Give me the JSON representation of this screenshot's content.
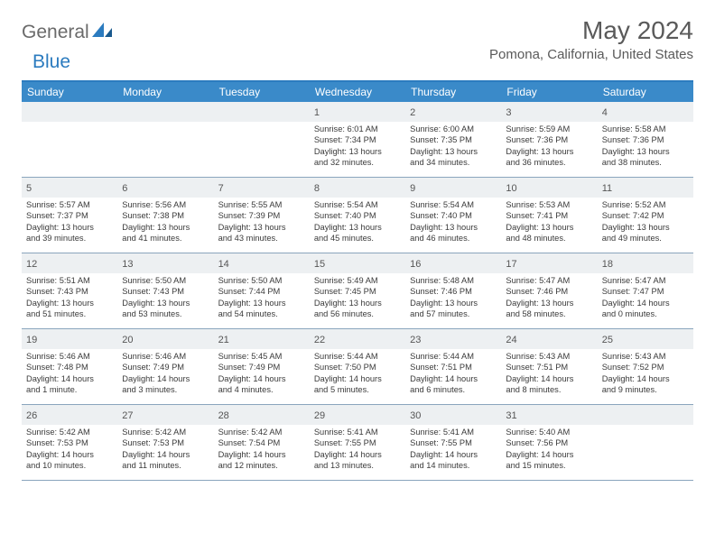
{
  "brand": {
    "part1": "General",
    "part2": "Blue"
  },
  "title": "May 2024",
  "location": "Pomona, California, United States",
  "colors": {
    "header_bg": "#3a8ac9",
    "border_top": "#2b7bbf",
    "row_border": "#8aa5bd",
    "daynum_bg": "#edf0f2",
    "text_gray": "#5a5a5a"
  },
  "weekdays": [
    "Sunday",
    "Monday",
    "Tuesday",
    "Wednesday",
    "Thursday",
    "Friday",
    "Saturday"
  ],
  "weeks": [
    [
      {
        "n": "",
        "empty": true
      },
      {
        "n": "",
        "empty": true
      },
      {
        "n": "",
        "empty": true
      },
      {
        "n": "1",
        "sr": "6:01 AM",
        "ss": "7:34 PM",
        "dh": "13",
        "dm": "32"
      },
      {
        "n": "2",
        "sr": "6:00 AM",
        "ss": "7:35 PM",
        "dh": "13",
        "dm": "34"
      },
      {
        "n": "3",
        "sr": "5:59 AM",
        "ss": "7:36 PM",
        "dh": "13",
        "dm": "36"
      },
      {
        "n": "4",
        "sr": "5:58 AM",
        "ss": "7:36 PM",
        "dh": "13",
        "dm": "38"
      }
    ],
    [
      {
        "n": "5",
        "sr": "5:57 AM",
        "ss": "7:37 PM",
        "dh": "13",
        "dm": "39"
      },
      {
        "n": "6",
        "sr": "5:56 AM",
        "ss": "7:38 PM",
        "dh": "13",
        "dm": "41"
      },
      {
        "n": "7",
        "sr": "5:55 AM",
        "ss": "7:39 PM",
        "dh": "13",
        "dm": "43"
      },
      {
        "n": "8",
        "sr": "5:54 AM",
        "ss": "7:40 PM",
        "dh": "13",
        "dm": "45"
      },
      {
        "n": "9",
        "sr": "5:54 AM",
        "ss": "7:40 PM",
        "dh": "13",
        "dm": "46"
      },
      {
        "n": "10",
        "sr": "5:53 AM",
        "ss": "7:41 PM",
        "dh": "13",
        "dm": "48"
      },
      {
        "n": "11",
        "sr": "5:52 AM",
        "ss": "7:42 PM",
        "dh": "13",
        "dm": "49"
      }
    ],
    [
      {
        "n": "12",
        "sr": "5:51 AM",
        "ss": "7:43 PM",
        "dh": "13",
        "dm": "51"
      },
      {
        "n": "13",
        "sr": "5:50 AM",
        "ss": "7:43 PM",
        "dh": "13",
        "dm": "53"
      },
      {
        "n": "14",
        "sr": "5:50 AM",
        "ss": "7:44 PM",
        "dh": "13",
        "dm": "54"
      },
      {
        "n": "15",
        "sr": "5:49 AM",
        "ss": "7:45 PM",
        "dh": "13",
        "dm": "56"
      },
      {
        "n": "16",
        "sr": "5:48 AM",
        "ss": "7:46 PM",
        "dh": "13",
        "dm": "57"
      },
      {
        "n": "17",
        "sr": "5:47 AM",
        "ss": "7:46 PM",
        "dh": "13",
        "dm": "58"
      },
      {
        "n": "18",
        "sr": "5:47 AM",
        "ss": "7:47 PM",
        "dh": "14",
        "dm": "0"
      }
    ],
    [
      {
        "n": "19",
        "sr": "5:46 AM",
        "ss": "7:48 PM",
        "dh": "14",
        "dm": "1"
      },
      {
        "n": "20",
        "sr": "5:46 AM",
        "ss": "7:49 PM",
        "dh": "14",
        "dm": "3"
      },
      {
        "n": "21",
        "sr": "5:45 AM",
        "ss": "7:49 PM",
        "dh": "14",
        "dm": "4"
      },
      {
        "n": "22",
        "sr": "5:44 AM",
        "ss": "7:50 PM",
        "dh": "14",
        "dm": "5"
      },
      {
        "n": "23",
        "sr": "5:44 AM",
        "ss": "7:51 PM",
        "dh": "14",
        "dm": "6"
      },
      {
        "n": "24",
        "sr": "5:43 AM",
        "ss": "7:51 PM",
        "dh": "14",
        "dm": "8"
      },
      {
        "n": "25",
        "sr": "5:43 AM",
        "ss": "7:52 PM",
        "dh": "14",
        "dm": "9"
      }
    ],
    [
      {
        "n": "26",
        "sr": "5:42 AM",
        "ss": "7:53 PM",
        "dh": "14",
        "dm": "10"
      },
      {
        "n": "27",
        "sr": "5:42 AM",
        "ss": "7:53 PM",
        "dh": "14",
        "dm": "11"
      },
      {
        "n": "28",
        "sr": "5:42 AM",
        "ss": "7:54 PM",
        "dh": "14",
        "dm": "12"
      },
      {
        "n": "29",
        "sr": "5:41 AM",
        "ss": "7:55 PM",
        "dh": "14",
        "dm": "13"
      },
      {
        "n": "30",
        "sr": "5:41 AM",
        "ss": "7:55 PM",
        "dh": "14",
        "dm": "14"
      },
      {
        "n": "31",
        "sr": "5:40 AM",
        "ss": "7:56 PM",
        "dh": "14",
        "dm": "15"
      },
      {
        "n": "",
        "empty": true
      }
    ]
  ],
  "labels": {
    "sunrise": "Sunrise:",
    "sunset": "Sunset:",
    "daylight": "Daylight:",
    "hours": "hours",
    "and": "and",
    "minute": "minute.",
    "minutes": "minutes."
  }
}
